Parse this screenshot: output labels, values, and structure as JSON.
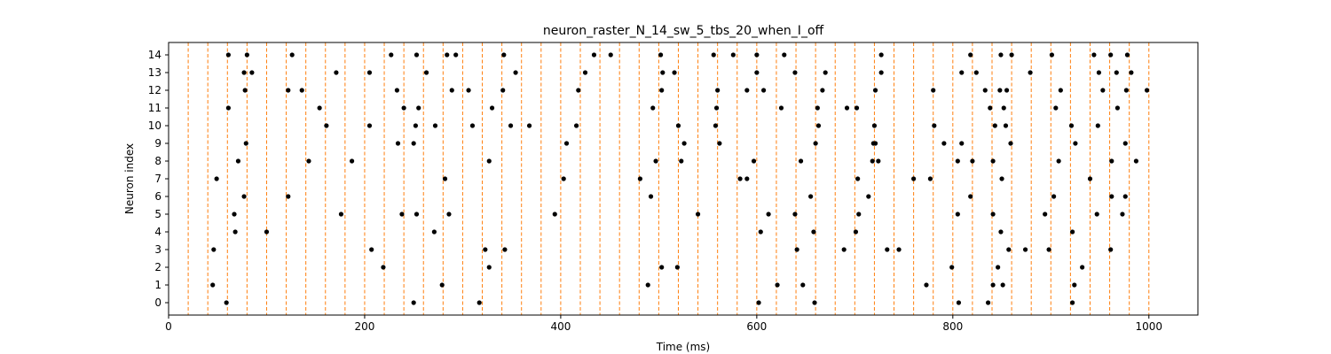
{
  "chart_data": {
    "type": "scatter",
    "title": "neuron_raster_N_14_sw_5_tbs_20_when_I_off",
    "xlabel": "Time (ms)",
    "ylabel": "Neuron index",
    "xlim": [
      0,
      1050
    ],
    "ylim": [
      -0.7,
      14.7
    ],
    "x_ticks": [
      0,
      200,
      400,
      600,
      800,
      1000
    ],
    "y_ticks": [
      0,
      1,
      2,
      3,
      4,
      5,
      6,
      7,
      8,
      9,
      10,
      11,
      12,
      13,
      14
    ],
    "grid": false,
    "legend": "none",
    "point_color": "#000000",
    "vline_color": "#ff7f0e",
    "vlines": [
      20,
      40,
      60,
      80,
      100,
      120,
      140,
      160,
      180,
      200,
      220,
      240,
      260,
      280,
      300,
      320,
      340,
      360,
      380,
      400,
      420,
      440,
      460,
      480,
      500,
      520,
      540,
      560,
      580,
      600,
      620,
      640,
      660,
      680,
      700,
      720,
      740,
      760,
      780,
      800,
      820,
      840,
      860,
      880,
      900,
      920,
      940,
      960,
      980,
      1000
    ],
    "spikes": [
      {
        "neuron": 14,
        "times": [
          61,
          80,
          126,
          227,
          253,
          284,
          293,
          342,
          434,
          451,
          502,
          556,
          576,
          600,
          628,
          727,
          818,
          849,
          860,
          901,
          944,
          961,
          978
        ]
      },
      {
        "neuron": 13,
        "times": [
          77,
          85,
          171,
          205,
          263,
          354,
          425,
          504,
          516,
          600,
          639,
          670,
          727,
          809,
          824,
          879,
          949,
          967,
          982
        ]
      },
      {
        "neuron": 12,
        "times": [
          78,
          122,
          136,
          233,
          289,
          306,
          341,
          418,
          503,
          560,
          590,
          607,
          667,
          721,
          780,
          833,
          848,
          855,
          910,
          953,
          977,
          998
        ]
      },
      {
        "neuron": 11,
        "times": [
          61,
          154,
          240,
          255,
          330,
          494,
          559,
          625,
          662,
          692,
          702,
          838,
          852,
          905,
          968
        ]
      },
      {
        "neuron": 10,
        "times": [
          161,
          205,
          252,
          272,
          310,
          349,
          368,
          416,
          520,
          558,
          663,
          720,
          781,
          843,
          854,
          921,
          948
        ]
      },
      {
        "neuron": 9,
        "times": [
          79,
          234,
          250,
          406,
          526,
          562,
          660,
          719,
          721,
          791,
          809,
          859,
          925,
          976
        ]
      },
      {
        "neuron": 8,
        "times": [
          71,
          143,
          187,
          327,
          497,
          523,
          597,
          645,
          718,
          724,
          805,
          820,
          841,
          908,
          962,
          987
        ]
      },
      {
        "neuron": 7,
        "times": [
          49,
          282,
          403,
          481,
          583,
          590,
          703,
          760,
          777,
          850,
          940
        ]
      },
      {
        "neuron": 6,
        "times": [
          77,
          122,
          492,
          655,
          714,
          818,
          903,
          962,
          976
        ]
      },
      {
        "neuron": 5,
        "times": [
          67,
          176,
          238,
          253,
          286,
          394,
          540,
          612,
          639,
          704,
          805,
          841,
          894,
          947,
          973
        ]
      },
      {
        "neuron": 4,
        "times": [
          68,
          100,
          271,
          604,
          658,
          701,
          849,
          922
        ]
      },
      {
        "neuron": 3,
        "times": [
          46,
          207,
          323,
          343,
          641,
          689,
          733,
          745,
          857,
          874,
          898,
          961
        ]
      },
      {
        "neuron": 2,
        "times": [
          219,
          327,
          503,
          519,
          799,
          846,
          932
        ]
      },
      {
        "neuron": 1,
        "times": [
          45,
          279,
          489,
          621,
          647,
          773,
          841,
          851,
          924
        ]
      },
      {
        "neuron": 0,
        "times": [
          59,
          250,
          317,
          602,
          659,
          806,
          836,
          922
        ]
      }
    ]
  }
}
